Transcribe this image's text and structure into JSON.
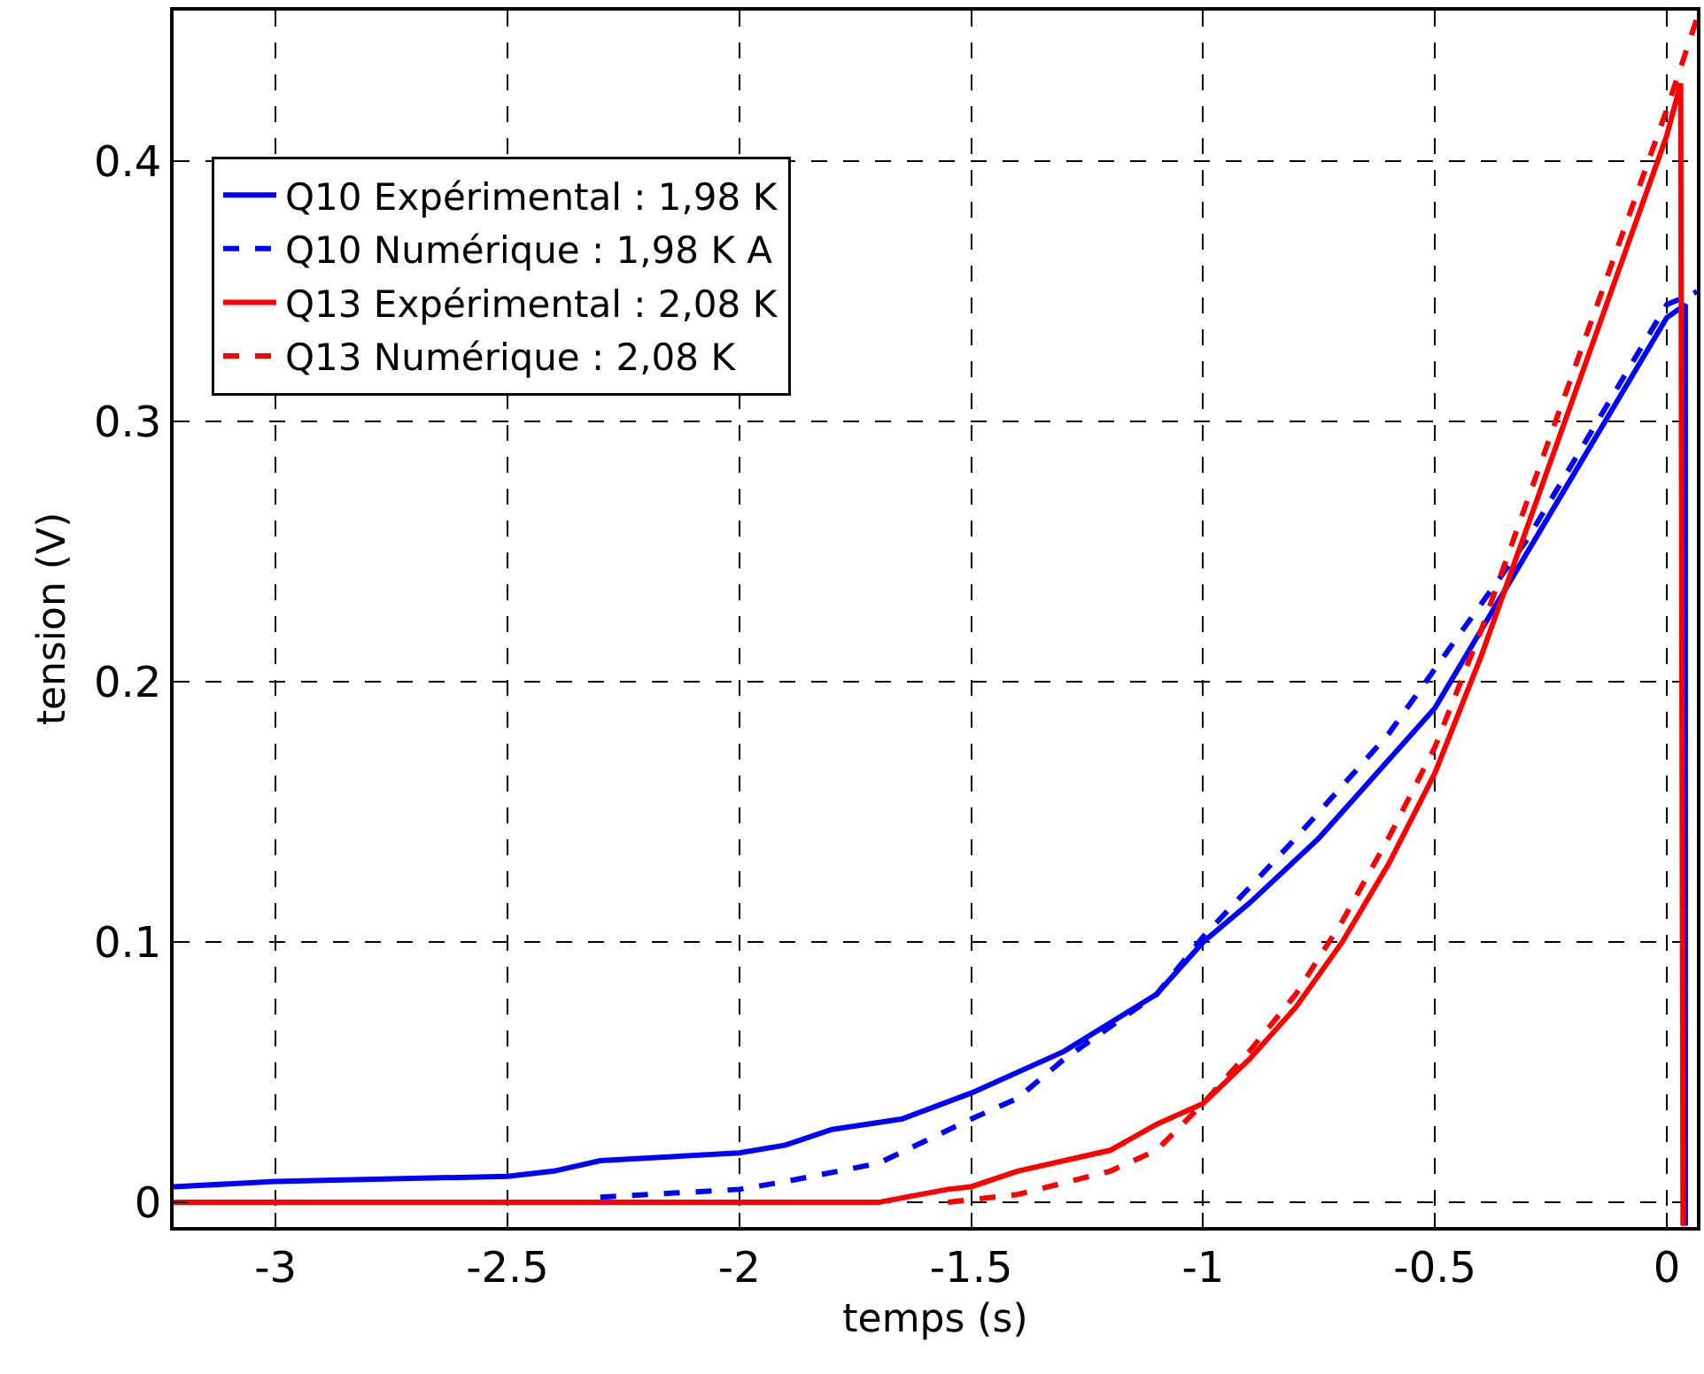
{
  "chart_data": {
    "type": "line",
    "xlabel": "temps (s)",
    "ylabel": "tension (V)",
    "xlim": [
      -3.22,
      0.065
    ],
    "xticks": [
      -3,
      -2.5,
      -2,
      -1.5,
      -1,
      -0.5,
      0
    ],
    "ylim": [
      -0.0095,
      0.458
    ],
    "yticks": [
      0,
      0.1,
      0.2,
      0.3,
      0.4
    ],
    "grid": true,
    "legend": "top left",
    "marker": "none",
    "series": [
      {
        "name": "Q10 Expérimental : 1,98 K",
        "color": "#0000ff",
        "line_style": "solid",
        "x": [
          -3.22,
          -3.0,
          -2.5,
          -2.4,
          -2.3,
          -2.0,
          -1.9,
          -1.8,
          -1.65,
          -1.5,
          -1.3,
          -1.1,
          -1.0,
          -0.9,
          -0.75,
          -0.5,
          -0.4,
          -0.3,
          -0.2,
          -0.1,
          0.0,
          0.04,
          0.04
        ],
        "values": [
          0.006,
          0.008,
          0.01,
          0.012,
          0.016,
          0.019,
          0.022,
          0.028,
          0.032,
          0.042,
          0.058,
          0.08,
          0.1,
          0.115,
          0.14,
          0.19,
          0.22,
          0.25,
          0.28,
          0.31,
          0.34,
          0.345,
          -0.009
        ]
      },
      {
        "name": "Q10 Numérique : 1,98 K A",
        "color": "#0000ff",
        "line_style": "dashed",
        "x": [
          -2.3,
          -2.0,
          -1.9,
          -1.7,
          -1.5,
          -1.4,
          -1.3,
          -1.1,
          -1.0,
          -0.8,
          -0.6,
          -0.5,
          -0.3,
          -0.2,
          -0.1,
          0.0,
          0.065
        ],
        "values": [
          0.002,
          0.005,
          0.008,
          0.015,
          0.032,
          0.04,
          0.055,
          0.08,
          0.102,
          0.14,
          0.18,
          0.205,
          0.255,
          0.285,
          0.315,
          0.345,
          0.35
        ]
      },
      {
        "name": "Q13 Expérimental : 2,08 K",
        "color": "#ff0000",
        "line_style": "solid",
        "x": [
          -3.22,
          -1.7,
          -1.55,
          -1.5,
          -1.4,
          -1.2,
          -1.1,
          -1.0,
          -0.9,
          -0.8,
          -0.7,
          -0.6,
          -0.5,
          -0.4,
          -0.3,
          -0.2,
          -0.1,
          0.0,
          0.03,
          0.035
        ],
        "values": [
          0.0,
          0.0,
          0.005,
          0.006,
          0.012,
          0.02,
          0.03,
          0.038,
          0.055,
          0.075,
          0.1,
          0.13,
          0.165,
          0.21,
          0.26,
          0.31,
          0.36,
          0.41,
          0.43,
          -0.009
        ]
      },
      {
        "name": "Q13 Numérique : 2,08 K",
        "color": "#ff0000",
        "line_style": "dashed",
        "x": [
          -1.55,
          -1.4,
          -1.2,
          -1.1,
          -1.0,
          -0.9,
          -0.8,
          -0.7,
          -0.6,
          -0.5,
          -0.4,
          -0.3,
          -0.2,
          -0.1,
          0.0,
          0.065
        ],
        "values": [
          0.0,
          0.003,
          0.012,
          0.02,
          0.038,
          0.058,
          0.08,
          0.108,
          0.14,
          0.175,
          0.22,
          0.27,
          0.32,
          0.37,
          0.42,
          0.455
        ]
      }
    ]
  }
}
